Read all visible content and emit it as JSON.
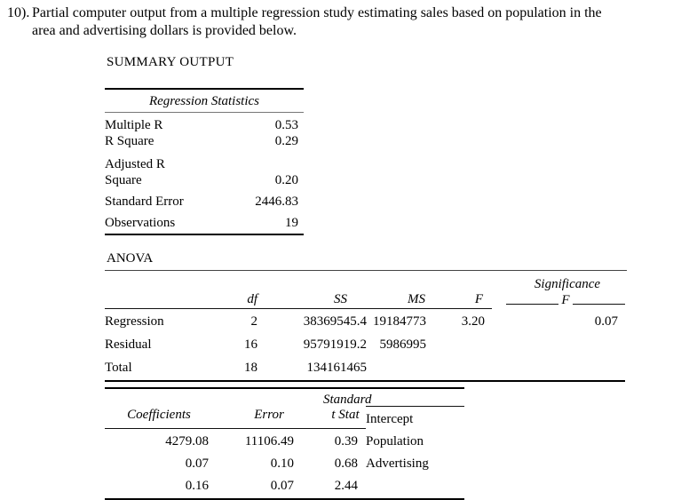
{
  "question": {
    "number": "10).",
    "line1": "Partial computer output from a multiple regression study estimating sales based on population in the",
    "line2": "area and advertising dollars is provided below."
  },
  "summary": {
    "title": "SUMMARY OUTPUT",
    "table_header": "Regression Statistics",
    "rows": [
      {
        "label": "Multiple R",
        "value": "0.53"
      },
      {
        "label": "R Square",
        "value": "0.29"
      },
      {
        "label": "Adjusted R Square",
        "value": "0.20"
      },
      {
        "label": "Standard Error",
        "value": "2446.83"
      },
      {
        "label": "Observations",
        "value": "19"
      }
    ]
  },
  "anova": {
    "title": "ANOVA",
    "headers": {
      "df": "df",
      "ss": "SS",
      "ms": "MS",
      "f": "F",
      "sig_line1": "Significance",
      "sig_line2": "F"
    },
    "rows": [
      {
        "label": "Regression",
        "df": "2",
        "ss": "38369545.4",
        "ms": "19184773",
        "f": "3.20",
        "sig_f": "0.07"
      },
      {
        "label": "Residual",
        "df": "16",
        "ss": "95791919.2",
        "ms": "5986995",
        "f": "",
        "sig_f": ""
      },
      {
        "label": "Total",
        "df": "18",
        "ss": "134161465",
        "ms": "",
        "f": "",
        "sig_f": ""
      }
    ]
  },
  "coefficients": {
    "headers": {
      "coef": "Coefficients",
      "std_line1": "Standard",
      "std_line2": "Error",
      "t_stat": "t Stat"
    },
    "rows": [
      {
        "label": "Intercept",
        "coef": "4279.08",
        "std_err": "11106.49",
        "t_stat": "0.39"
      },
      {
        "label": "Population",
        "coef": "0.07",
        "std_err": "0.10",
        "t_stat": "0.68"
      },
      {
        "label": "Advertising",
        "coef": "0.16",
        "std_err": "0.07",
        "t_stat": "2.44"
      }
    ]
  }
}
